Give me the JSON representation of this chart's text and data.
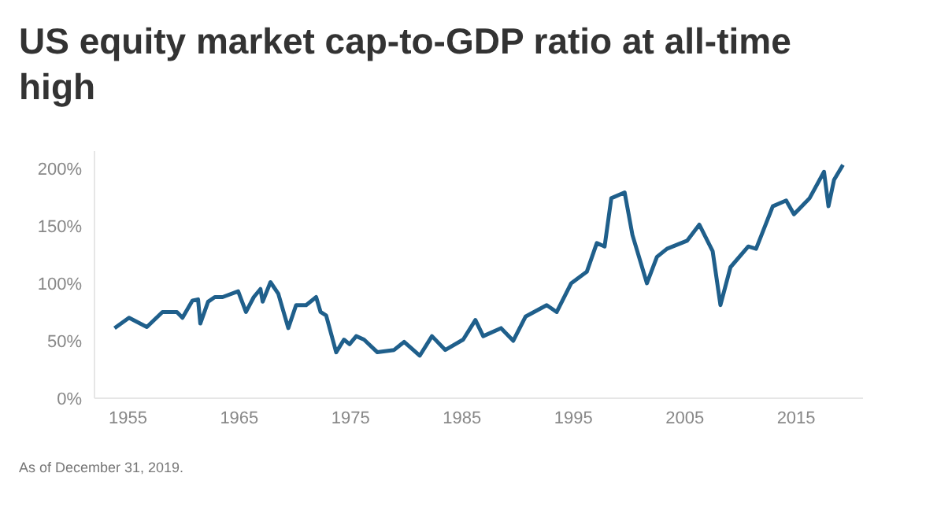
{
  "chart_data": {
    "type": "line",
    "title": "US equity market cap-to-GDP ratio at all-time high",
    "annotations": [
      "As of December 31, 2019."
    ],
    "x": [
      1953.8,
      1955.1,
      1956.7,
      1958.1,
      1959.4,
      1959.9,
      1960.8,
      1961.3,
      1961.5,
      1962.2,
      1962.8,
      1963.5,
      1964.9,
      1965.6,
      1966.3,
      1966.9,
      1967.1,
      1967.8,
      1968.5,
      1969.4,
      1970.1,
      1971.0,
      1971.9,
      1972.3,
      1972.8,
      1973.7,
      1974.4,
      1974.9,
      1975.5,
      1976.2,
      1977.4,
      1978.9,
      1979.8,
      1981.2,
      1982.3,
      1983.5,
      1985.1,
      1986.2,
      1986.9,
      1988.5,
      1989.6,
      1990.7,
      1992.6,
      1993.5,
      1994.8,
      1996.2,
      1997.1,
      1997.8,
      1998.4,
      1999.6,
      2000.3,
      2001.6,
      2002.5,
      2003.4,
      2005.2,
      2006.3,
      2007.5,
      2008.2,
      2009.1,
      2010.7,
      2011.4,
      2012.9,
      2014.1,
      2014.8,
      2016.2,
      2017.5,
      2017.9,
      2018.4,
      2019.2
    ],
    "series": [
      {
        "color": "#1f5f8b",
        "values": [
          61,
          70,
          62,
          75,
          75,
          70,
          85,
          86,
          65,
          84,
          88,
          88,
          93,
          75,
          88,
          95,
          84,
          101,
          91,
          61,
          81,
          81,
          88,
          75,
          72,
          40,
          51,
          47,
          54,
          51,
          40,
          42,
          49,
          37,
          54,
          42,
          51,
          68,
          54,
          61,
          50,
          71,
          81,
          75,
          100,
          110,
          135,
          132,
          174,
          179,
          142,
          100,
          123,
          130,
          137,
          151,
          128,
          81,
          114,
          132,
          130,
          167,
          172,
          160,
          174,
          197,
          167,
          190,
          203
        ]
      }
    ],
    "xlim": [
      1952,
      2021
    ],
    "xticks": [
      1955,
      1965,
      1975,
      1985,
      1995,
      2005,
      2015
    ],
    "ylim": [
      0,
      215
    ],
    "yticks": [
      {
        "value": 0,
        "label": "0%"
      },
      {
        "value": 50,
        "label": "50%"
      },
      {
        "value": 100,
        "label": "100%"
      },
      {
        "value": 150,
        "label": "150%"
      },
      {
        "value": 200,
        "label": "200%"
      }
    ],
    "grid": false,
    "legend": false,
    "marker": "none",
    "line_style": "solid"
  }
}
